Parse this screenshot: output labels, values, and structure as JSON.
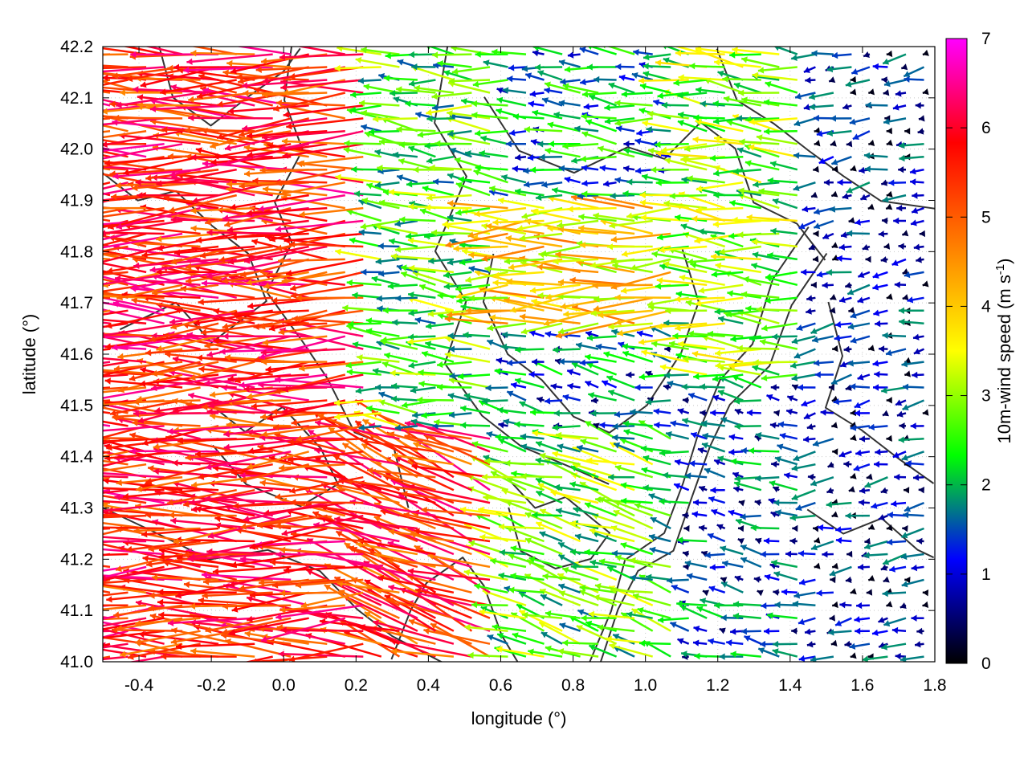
{
  "chart_data": {
    "type": "vector_field",
    "xlabel": "longitude (°)",
    "ylabel": "latitude (°)",
    "colorbar_label": "10m-wind speed (m s",
    "colorbar_label_superscript": "-1",
    "colorbar_label_close": ")",
    "xlim": [
      -0.5,
      1.8
    ],
    "ylim": [
      41.0,
      42.2
    ],
    "x_ticks": [
      "-0.4",
      "-0.2",
      "0.0",
      "0.2",
      "0.4",
      "0.6",
      "0.8",
      "1.0",
      "1.2",
      "1.4",
      "1.6",
      "1.8"
    ],
    "x_tick_values": [
      -0.4,
      -0.2,
      0.0,
      0.2,
      0.4,
      0.6,
      0.8,
      1.0,
      1.2,
      1.4,
      1.6,
      1.8
    ],
    "y_ticks": [
      "41.0",
      "41.1",
      "41.2",
      "41.3",
      "41.4",
      "41.5",
      "41.6",
      "41.7",
      "41.8",
      "41.9",
      "42.0",
      "42.1",
      "42.2"
    ],
    "y_tick_values": [
      41.0,
      41.1,
      41.2,
      41.3,
      41.4,
      41.5,
      41.6,
      41.7,
      41.8,
      41.9,
      42.0,
      42.1,
      42.2
    ],
    "colorbar_ticks": [
      "0",
      "1",
      "2",
      "3",
      "4",
      "5",
      "6",
      "7"
    ],
    "colorbar_range": [
      0,
      7
    ],
    "colormap": [
      "#000000",
      "#0000ff",
      "#00ff00",
      "#ffff00",
      "#ff8000",
      "#ff0000",
      "#ff00ff"
    ],
    "contour_color": "#333333",
    "grid": "dotted",
    "regions": [
      {
        "lon": [
          -0.5,
          0.25
        ],
        "lat": [
          41.0,
          42.2
        ],
        "speed": 5.6,
        "dir_deg": 180
      },
      {
        "lon": [
          0.25,
          0.6
        ],
        "lat": [
          41.0,
          41.45
        ],
        "speed": 5.5,
        "dir_deg": 160
      },
      {
        "lon": [
          0.25,
          0.6
        ],
        "lat": [
          41.45,
          42.2
        ],
        "speed": 2.5,
        "dir_deg": 175
      },
      {
        "lon": [
          0.6,
          1.1
        ],
        "lat": [
          41.65,
          41.9
        ],
        "speed": 3.8,
        "dir_deg": 180
      },
      {
        "lon": [
          0.6,
          1.1
        ],
        "lat": [
          41.45,
          41.65
        ],
        "speed": 1.4,
        "dir_deg": 170
      },
      {
        "lon": [
          0.6,
          1.1
        ],
        "lat": [
          41.9,
          42.2
        ],
        "speed": 1.8,
        "dir_deg": 175
      },
      {
        "lon": [
          0.6,
          1.1
        ],
        "lat": [
          41.0,
          41.45
        ],
        "speed": 2.6,
        "dir_deg": 165
      },
      {
        "lon": [
          1.1,
          1.45
        ],
        "lat": [
          41.55,
          42.2
        ],
        "speed": 2.8,
        "dir_deg": 175
      },
      {
        "lon": [
          1.1,
          1.45
        ],
        "lat": [
          41.0,
          41.55
        ],
        "speed": 1.3,
        "dir_deg": 170
      },
      {
        "lon": [
          1.45,
          1.8
        ],
        "lat": [
          41.0,
          42.2
        ],
        "speed": 0.9,
        "dir_deg": 190
      }
    ]
  }
}
